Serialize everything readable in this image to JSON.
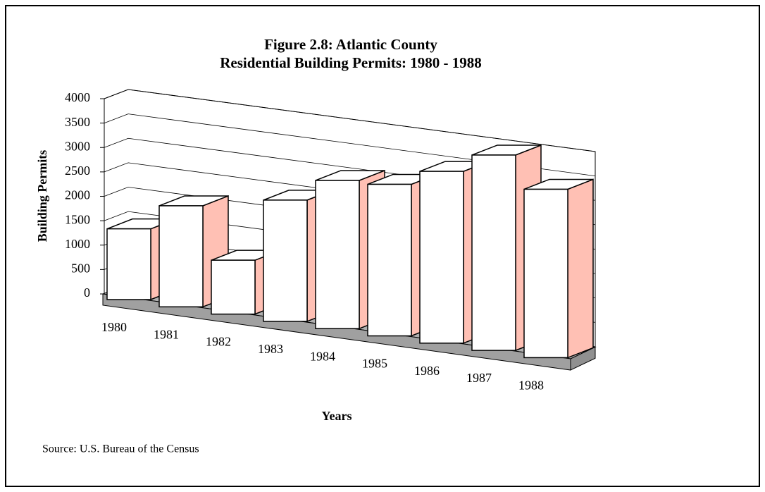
{
  "chart_data": {
    "type": "bar3d",
    "title": "Figure 2.8: Atlantic County",
    "subtitle": "Residential Building Permits: 1980 - 1988",
    "y_label": "Building Permits",
    "x_label": "Years",
    "source": "Source: U.S. Bureau of the Census",
    "categories": [
      "1980",
      "1981",
      "1982",
      "1983",
      "1984",
      "1985",
      "1986",
      "1987",
      "1988"
    ],
    "values": [
      1050,
      1500,
      800,
      1800,
      2200,
      2250,
      2550,
      2900,
      2500
    ],
    "color": "#ffffff",
    "side_color": "#ffc0b4",
    "ylim": [
      0,
      4000
    ],
    "yticks": [
      0,
      500,
      1000,
      1500,
      2000,
      2500,
      3000,
      3500,
      4000
    ],
    "grid": true
  }
}
